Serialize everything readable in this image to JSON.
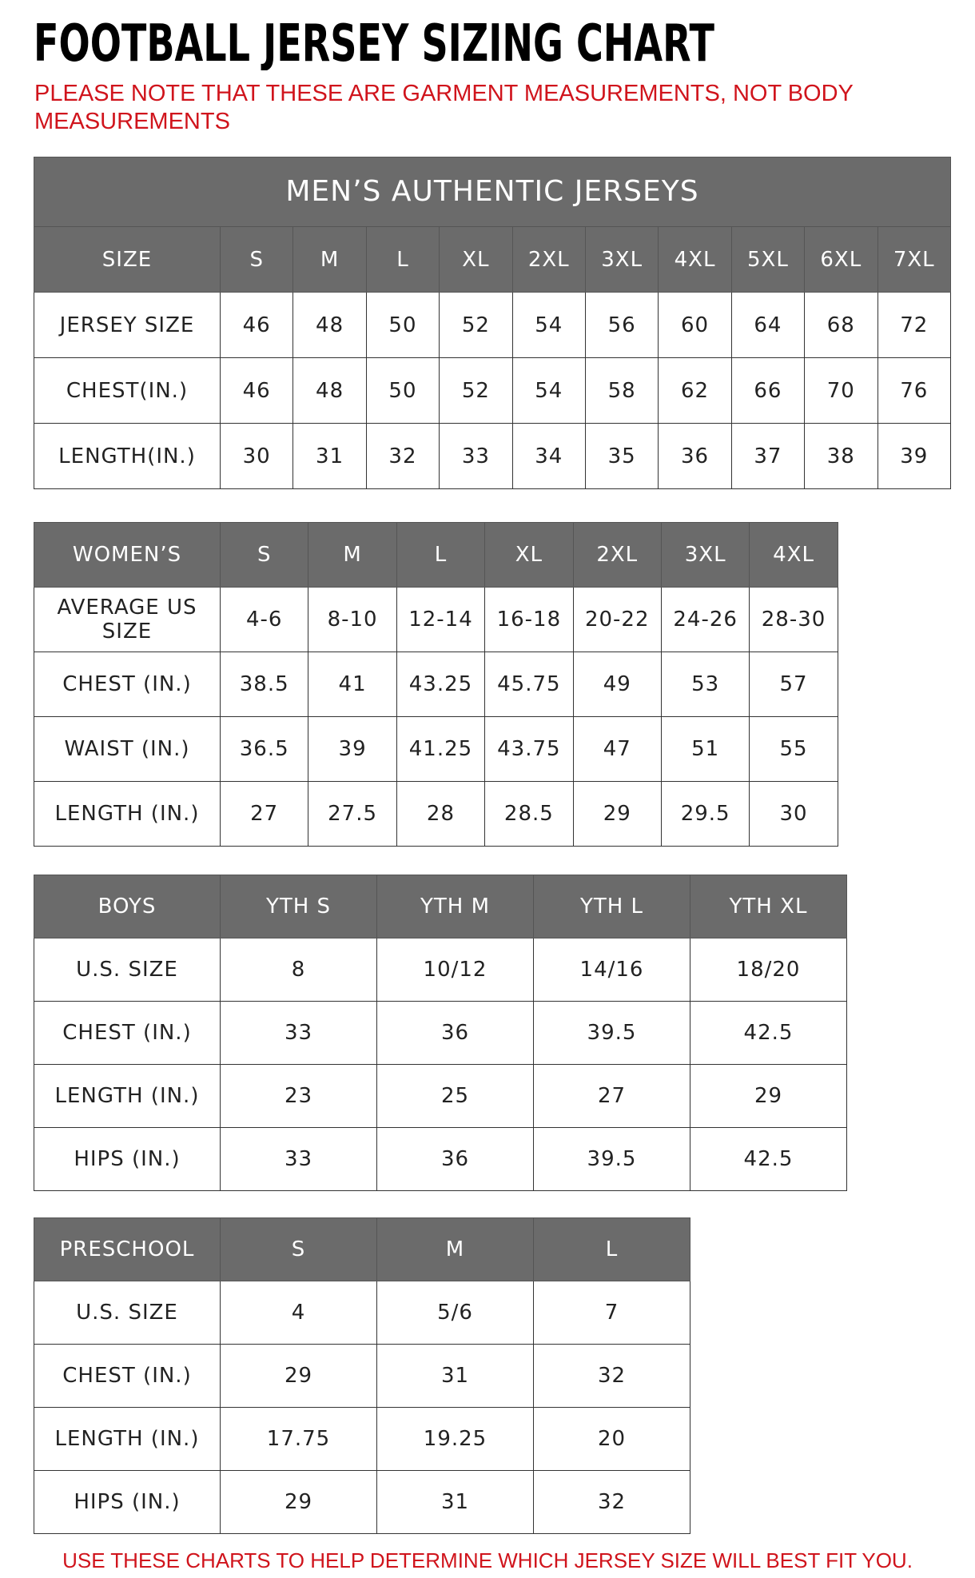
{
  "header": {
    "title": "FOOTBALL JERSEY SIZING CHART",
    "note": "PLEASE NOTE THAT THESE ARE GARMENT MEASUREMENTS, NOT BODY MEASUREMENTS"
  },
  "tables": [
    {
      "caption": "MEN’S AUTHENTIC JERSEYS",
      "header": [
        "SIZE",
        "S",
        "M",
        "L",
        "XL",
        "2XL",
        "3XL",
        "4XL",
        "5XL",
        "6XL",
        "7XL"
      ],
      "rows": [
        [
          "JERSEY SIZE",
          "46",
          "48",
          "50",
          "52",
          "54",
          "56",
          "60",
          "64",
          "68",
          "72"
        ],
        [
          "CHEST(IN.)",
          "46",
          "48",
          "50",
          "52",
          "54",
          "58",
          "62",
          "66",
          "70",
          "76"
        ],
        [
          "LENGTH(IN.)",
          "30",
          "31",
          "32",
          "33",
          "34",
          "35",
          "36",
          "37",
          "38",
          "39"
        ]
      ]
    },
    {
      "header": [
        "WOMEN’S",
        "S",
        "M",
        "L",
        "XL",
        "2XL",
        "3XL",
        "4XL"
      ],
      "rows": [
        [
          "AVERAGE US SIZE",
          "4-6",
          "8-10",
          "12-14",
          "16-18",
          "20-22",
          "24-26",
          "28-30"
        ],
        [
          "CHEST (IN.)",
          "38.5",
          "41",
          "43.25",
          "45.75",
          "49",
          "53",
          "57"
        ],
        [
          "WAIST (IN.)",
          "36.5",
          "39",
          "41.25",
          "43.75",
          "47",
          "51",
          "55"
        ],
        [
          "LENGTH (IN.)",
          "27",
          "27.5",
          "28",
          "28.5",
          "29",
          "29.5",
          "30"
        ]
      ]
    },
    {
      "header": [
        "BOYS",
        "YTH S",
        "YTH M",
        "YTH L",
        "YTH XL"
      ],
      "rows": [
        [
          "U.S. SIZE",
          "8",
          "10/12",
          "14/16",
          "18/20"
        ],
        [
          "CHEST (IN.)",
          "33",
          "36",
          "39.5",
          "42.5"
        ],
        [
          "LENGTH (IN.)",
          "23",
          "25",
          "27",
          "29"
        ],
        [
          "HIPS (IN.)",
          "33",
          "36",
          "39.5",
          "42.5"
        ]
      ]
    },
    {
      "header": [
        "PRESCHOOL",
        "S",
        "M",
        "L"
      ],
      "rows": [
        [
          "U.S. SIZE",
          "4",
          "5/6",
          "7"
        ],
        [
          "CHEST (IN.)",
          "29",
          "31",
          "32"
        ],
        [
          "LENGTH (IN.)",
          "17.75",
          "19.25",
          "20"
        ],
        [
          "HIPS (IN.)",
          "29",
          "31",
          "32"
        ]
      ]
    }
  ],
  "footer": "USE THESE CHARTS TO HELP DETERMINE WHICH JERSEY SIZE WILL BEST FIT YOU."
}
